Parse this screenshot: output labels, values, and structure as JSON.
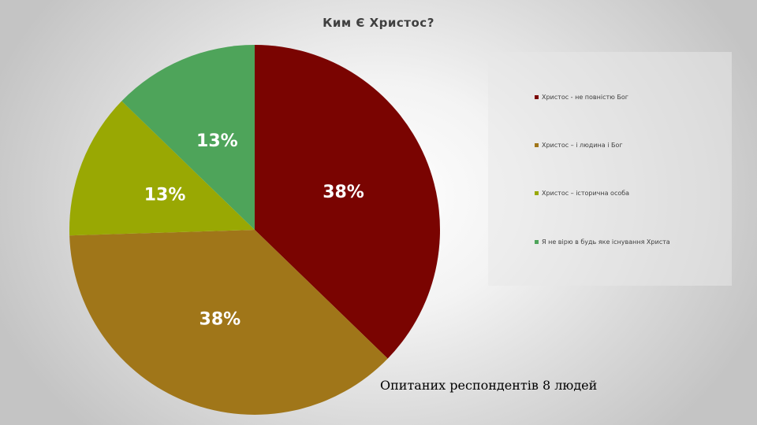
{
  "chart_data": {
    "type": "pie",
    "title": "Ким Є Христос?",
    "categories": [
      "Христос  - не повністю Бог",
      "Христос – і людина і Бог",
      "Христос – історична особа",
      "Я не вірю в будь яке існування Христа"
    ],
    "values": [
      38,
      38,
      13,
      13
    ],
    "data_labels": [
      "38%",
      "38%",
      "13%",
      "13%"
    ],
    "colors": [
      "#7a0401",
      "#a07619",
      "#99a803",
      "#4ea45a"
    ],
    "legend_placement": "right"
  },
  "footnote": "Опитаних респондентів 8 людей"
}
